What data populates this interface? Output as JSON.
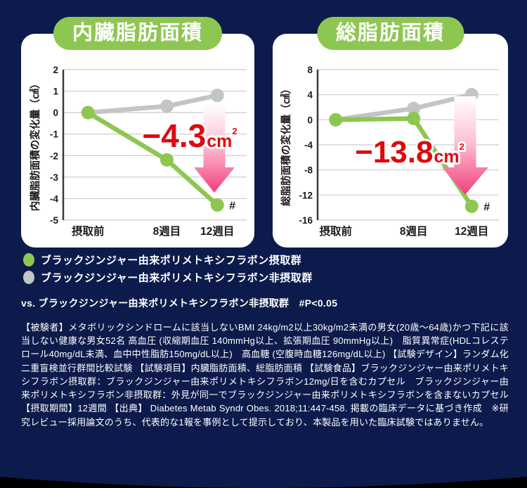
{
  "theme": {
    "background": "#0c1b4b",
    "panel_white": "#ffffff",
    "badge_green": "#8dc751",
    "line_green": "#8dc751",
    "line_gray": "#c3c4c6",
    "grid_gray": "#cccccc",
    "axis_dark": "#3a3a3a",
    "tick_black": "#1a1a1a",
    "annotation_red": "#dc0a10",
    "annotation_outline": "#ffffff",
    "arrow_pink_light": "#ffffff",
    "arrow_pink_mid": "#fdc3d8",
    "arrow_pink_deep": "#f23e7c",
    "footer_black": "#000000"
  },
  "chart_data": [
    {
      "type": "line",
      "title": "内臓脂肪面積",
      "ylabel": "内臓脂肪面積の変化量（㎠）",
      "categories": [
        "摂取前",
        "8週目",
        "12週目"
      ],
      "ylim": [
        -5,
        2
      ],
      "yticks": [
        2,
        1,
        0,
        -1,
        -2,
        -3,
        -4,
        -5
      ],
      "grid": true,
      "legend_position": "below",
      "series": [
        {
          "name": "ブラックジンジャー由来ポリメトキシフラボン非摂取群",
          "color_key": "line_gray",
          "values": [
            0,
            0.3,
            0.8
          ]
        },
        {
          "name": "ブラックジンジャー由来ポリメトキシフラボン摂取群",
          "color_key": "line_green",
          "values": [
            0,
            -2.2,
            -4.3
          ]
        }
      ],
      "annotation": {
        "value": "−4.3",
        "unit": "cm",
        "unit_sup": "2",
        "sig_marker": "#"
      }
    },
    {
      "type": "line",
      "title": "総脂肪面積",
      "ylabel": "総脂肪面積の変化量（㎠）",
      "categories": [
        "摂取前",
        "8週目",
        "12週目"
      ],
      "ylim": [
        -16,
        8
      ],
      "yticks": [
        8,
        4,
        0,
        -4,
        -8,
        -12,
        -16
      ],
      "grid": true,
      "legend_position": "below",
      "series": [
        {
          "name": "ブラックジンジャー由来ポリメトキシフラボン非摂取群",
          "color_key": "line_gray",
          "values": [
            0,
            1.8,
            4.0
          ]
        },
        {
          "name": "ブラックジンジャー由来ポリメトキシフラボン摂取群",
          "color_key": "line_green",
          "values": [
            0,
            0.2,
            -13.8
          ]
        }
      ],
      "annotation": {
        "value": "−13.8",
        "unit": "cm",
        "unit_sup": "2",
        "sig_marker": "#"
      }
    }
  ],
  "legend": {
    "items": [
      {
        "label": "ブラックジンジャー由来ポリメトキシフラボン摂取群",
        "color_key": "line_green"
      },
      {
        "label": "ブラックジンジャー由来ポリメトキシフラボン非摂取群",
        "color_key": "line_gray"
      }
    ]
  },
  "significance_note": "vs. ブラックジンジャー由来ポリメトキシフラボン非摂取群　#P<0.05",
  "study_details": "【被験者】メタボリックシンドロームに該当しないBMI 24kg/m2以上30kg/m2未満の男女(20歳～64歳)かつ下記に該当しない健康な男女52名 高血圧 (収縮期血圧 140mmHg以上、拡張期血圧 90mmHg以上)　脂質異常症(HDLコレステロール40mg/dL未満、血中中性脂肪150mg/dL以上)　高血糖 (空腹時血糖126mg/dL以上) 【試験デザイン】ランダム化二重盲検並行群間比較試験 【試験項目】内臓脂肪面積、総脂肪面積 【試験食品】ブラックジンジャー由来ポリメトキシフラボン摂取群：ブラックジンジャー由来ポリメトキシフラボン12mg/日を含むカプセル　ブラックジンジャー由来ポリメトキシフラボン非摂取群：外見が同一でブラックジンジャー由来ポリメトキシフラボンを含まないカプセル 【摂取期間】12週間 【出典】 Diabetes Metab Syndr Obes. 2018;11:447-458. 掲載の臨床データに基づき作成　※研究レビュー採用論文のうち、代表的な1報を事例として提示しており、本製品を用いた臨床試験ではありません。"
}
